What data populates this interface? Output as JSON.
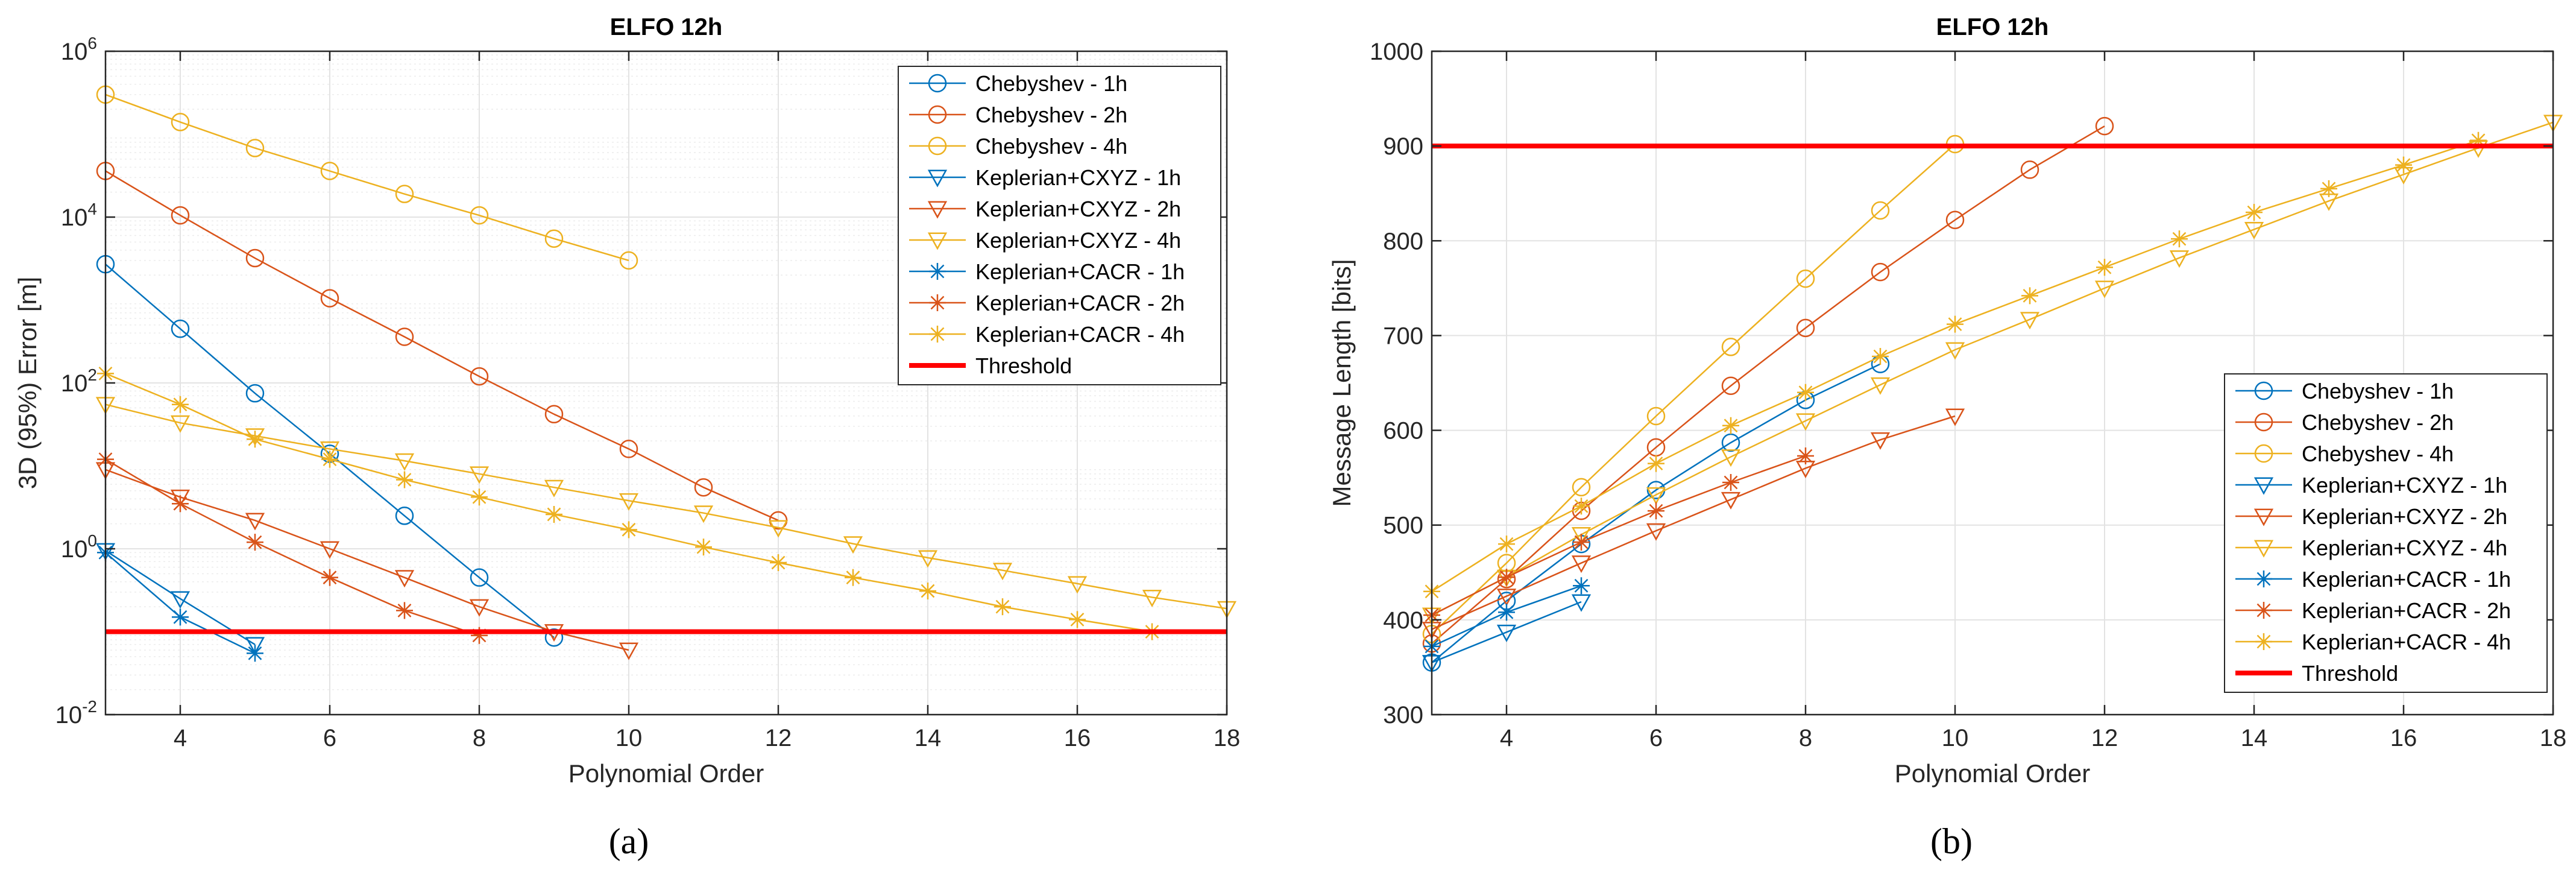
{
  "chart_data": [
    {
      "type": "line",
      "id": "a",
      "title": "ELFO 12h",
      "xlabel": "Polynomial Order",
      "ylabel": "3D (95%) Error [m]",
      "caption": "(a)",
      "yscale": "log",
      "xlim": [
        3,
        18
      ],
      "ylim": [
        0.01,
        1000000
      ],
      "xticks": [
        4,
        6,
        8,
        10,
        12,
        14,
        16,
        18
      ],
      "xtick_labels": [
        "4",
        "6",
        "8",
        "10",
        "12",
        "14",
        "16",
        "18"
      ],
      "yticks": [
        0.01,
        1,
        100,
        10000,
        1000000
      ],
      "ytick_labels": [
        {
          "base": "10",
          "exp": "-2"
        },
        {
          "base": "10",
          "exp": "0"
        },
        {
          "base": "10",
          "exp": "2"
        },
        {
          "base": "10",
          "exp": "4"
        },
        {
          "base": "10",
          "exp": "6"
        }
      ],
      "grid": true,
      "legend_position": "top-right",
      "threshold": {
        "name": "Threshold",
        "value": 0.1,
        "color": "#ff0000"
      },
      "series": [
        {
          "name": "Chebyshev - 1h",
          "color": "#0072bd",
          "marker": "circle",
          "x": [
            3,
            4,
            5,
            6,
            7,
            8,
            9
          ],
          "y": [
            2700,
            450,
            75,
            14,
            2.5,
            0.45,
            0.085
          ]
        },
        {
          "name": "Chebyshev - 2h",
          "color": "#d95319",
          "marker": "circle",
          "x": [
            3,
            4,
            5,
            6,
            7,
            8,
            9,
            10,
            11,
            12
          ],
          "y": [
            36000,
            10500,
            3200,
            1050,
            360,
            120,
            42,
            16,
            5.5,
            2.2
          ]
        },
        {
          "name": "Chebyshev - 4h",
          "color": "#edb120",
          "marker": "circle",
          "x": [
            3,
            4,
            5,
            6,
            7,
            8,
            9,
            10
          ],
          "y": [
            300000,
            140000,
            68000,
            36000,
            19000,
            10500,
            5500,
            3000
          ]
        },
        {
          "name": "Keplerian+CXYZ - 1h",
          "color": "#0072bd",
          "marker": "triangle-down",
          "x": [
            3,
            4,
            5
          ],
          "y": [
            0.95,
            0.25,
            0.07
          ]
        },
        {
          "name": "Keplerian+CXYZ - 2h",
          "color": "#d95319",
          "marker": "triangle-down",
          "x": [
            3,
            4,
            5,
            6,
            7,
            8,
            9,
            10
          ],
          "y": [
            9,
            4.2,
            2.2,
            1,
            0.45,
            0.2,
            0.1,
            0.06
          ]
        },
        {
          "name": "Keplerian+CXYZ - 4h",
          "color": "#edb120",
          "marker": "triangle-down",
          "x": [
            3,
            4,
            5,
            6,
            7,
            8,
            9,
            10,
            11,
            12,
            13,
            14,
            15,
            16,
            17,
            18
          ],
          "y": [
            55,
            33,
            23,
            16,
            11.5,
            8,
            5.5,
            3.8,
            2.7,
            1.8,
            1.15,
            0.78,
            0.55,
            0.38,
            0.26,
            0.19
          ]
        },
        {
          "name": "Keplerian+CACR - 1h",
          "color": "#0072bd",
          "marker": "star",
          "x": [
            3,
            4,
            5
          ],
          "y": [
            0.9,
            0.15,
            0.055
          ]
        },
        {
          "name": "Keplerian+CACR - 2h",
          "color": "#d95319",
          "marker": "star",
          "x": [
            3,
            4,
            5,
            6,
            7,
            8
          ],
          "y": [
            12,
            3.5,
            1.2,
            0.45,
            0.18,
            0.09
          ]
        },
        {
          "name": "Keplerian+CACR - 4h",
          "color": "#edb120",
          "marker": "star",
          "x": [
            3,
            4,
            5,
            6,
            7,
            8,
            9,
            10,
            11,
            12,
            13,
            14,
            15,
            16,
            17
          ],
          "y": [
            130,
            55,
            21,
            12,
            6.8,
            4.2,
            2.6,
            1.7,
            1.05,
            0.68,
            0.45,
            0.31,
            0.2,
            0.14,
            0.1
          ]
        }
      ]
    },
    {
      "type": "line",
      "id": "b",
      "title": "ELFO 12h",
      "xlabel": "Polynomial Order",
      "ylabel": "Message Length [bits]",
      "caption": "(b)",
      "yscale": "linear",
      "xlim": [
        3,
        18
      ],
      "ylim": [
        300,
        1000
      ],
      "xticks": [
        4,
        6,
        8,
        10,
        12,
        14,
        16,
        18
      ],
      "xtick_labels": [
        "4",
        "6",
        "8",
        "10",
        "12",
        "14",
        "16",
        "18"
      ],
      "yticks": [
        300,
        400,
        500,
        600,
        700,
        800,
        900,
        1000
      ],
      "ytick_labels": [
        "300",
        "400",
        "500",
        "600",
        "700",
        "800",
        "900",
        "1000"
      ],
      "grid": true,
      "legend_position": "bottom-right",
      "threshold": {
        "name": "Threshold",
        "value": 900,
        "color": "#ff0000"
      },
      "series": [
        {
          "name": "Chebyshev - 1h",
          "color": "#0072bd",
          "marker": "circle",
          "x": [
            3,
            4,
            5,
            6,
            7,
            8,
            9
          ],
          "y": [
            355,
            420,
            480,
            537,
            587,
            632,
            670
          ]
        },
        {
          "name": "Chebyshev - 2h",
          "color": "#d95319",
          "marker": "circle",
          "x": [
            3,
            4,
            5,
            6,
            7,
            8,
            9,
            10,
            11,
            12
          ],
          "y": [
            375,
            443,
            515,
            582,
            647,
            708,
            767,
            822,
            875,
            921
          ]
        },
        {
          "name": "Chebyshev - 4h",
          "color": "#edb120",
          "marker": "circle",
          "x": [
            3,
            4,
            5,
            6,
            7,
            8,
            9,
            10
          ],
          "y": [
            385,
            460,
            540,
            615,
            688,
            760,
            832,
            902
          ]
        },
        {
          "name": "Keplerian+CXYZ - 1h",
          "color": "#0072bd",
          "marker": "triangle-down",
          "x": [
            3,
            4,
            5
          ],
          "y": [
            355,
            387,
            419
          ]
        },
        {
          "name": "Keplerian+CXYZ - 2h",
          "color": "#d95319",
          "marker": "triangle-down",
          "x": [
            3,
            4,
            5,
            6,
            7,
            8,
            9,
            10
          ],
          "y": [
            390,
            425,
            460,
            494,
            527,
            560,
            590,
            615
          ]
        },
        {
          "name": "Keplerian+CXYZ - 4h",
          "color": "#edb120",
          "marker": "triangle-down",
          "x": [
            3,
            4,
            5,
            6,
            7,
            8,
            9,
            10,
            11,
            12,
            13,
            14,
            15,
            16,
            17,
            18
          ],
          "y": [
            405,
            445,
            490,
            532,
            572,
            610,
            648,
            685,
            717,
            750,
            782,
            812,
            842,
            870,
            898,
            925
          ]
        },
        {
          "name": "Keplerian+CACR - 1h",
          "color": "#0072bd",
          "marker": "star",
          "x": [
            3,
            4,
            5
          ],
          "y": [
            372,
            408,
            436
          ]
        },
        {
          "name": "Keplerian+CACR - 2h",
          "color": "#d95319",
          "marker": "star",
          "x": [
            3,
            4,
            5,
            6,
            7,
            8
          ],
          "y": [
            405,
            445,
            482,
            515,
            545,
            573
          ]
        },
        {
          "name": "Keplerian+CACR - 4h",
          "color": "#edb120",
          "marker": "star",
          "x": [
            3,
            4,
            5,
            6,
            7,
            8,
            9,
            10,
            11,
            12,
            13,
            14,
            15,
            16,
            17
          ],
          "y": [
            430,
            480,
            520,
            565,
            605,
            640,
            678,
            712,
            742,
            772,
            802,
            830,
            855,
            880,
            906
          ]
        }
      ]
    }
  ]
}
